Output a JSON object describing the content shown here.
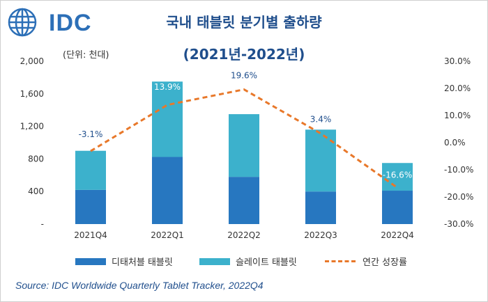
{
  "logo": {
    "text": "IDC",
    "icon": "globe-icon",
    "color": "#2c6fb7"
  },
  "title_line1": "국내 태블릿 분기별 출하량",
  "title_line2": "(2021년-2022년)",
  "unit_label": "(단위: 천대)",
  "source": "Source: IDC Worldwide Quarterly Tablet Tracker, 2022Q4",
  "colors": {
    "detachable": "#2777c0",
    "slate": "#3cb1cc",
    "growth": "#e8782a",
    "label_white": "#ffffff",
    "label_blue": "#1f4e8c"
  },
  "chart_data": {
    "type": "bar",
    "stacked": true,
    "categories": [
      "2021Q4",
      "2022Q1",
      "2022Q2",
      "2022Q3",
      "2022Q4"
    ],
    "series": [
      {
        "name": "디태처블 태블릿",
        "values": [
          420,
          825,
          580,
          400,
          410
        ],
        "color": "#2777c0"
      },
      {
        "name": "슬레이트 태블릿",
        "values": [
          480,
          925,
          770,
          760,
          340
        ],
        "color": "#3cb1cc"
      }
    ],
    "line_series": {
      "name": "연간 성장률",
      "values": [
        -3.1,
        13.9,
        19.6,
        3.4,
        -16.6
      ],
      "labels": [
        "-3.1%",
        "13.9%",
        "19.6%",
        "3.4%",
        "-16.6%"
      ],
      "axis": "right",
      "style": "dashed"
    },
    "y_left": {
      "ticks": [
        0,
        400,
        800,
        1200,
        1600,
        2000
      ],
      "tick_labels": [
        "-",
        "400",
        "800",
        "1,200",
        "1,600",
        "2,000"
      ],
      "ylim": [
        0,
        2000
      ]
    },
    "y_right": {
      "ticks": [
        -30,
        -20,
        -10,
        0,
        10,
        20,
        30
      ],
      "tick_labels": [
        "-30.0%",
        "-20.0%",
        "-10.0%",
        "0.0%",
        "10.0%",
        "20.0%",
        "30.0%"
      ],
      "ylim": [
        -30,
        30
      ]
    },
    "grid": false,
    "legend": "bottom"
  }
}
